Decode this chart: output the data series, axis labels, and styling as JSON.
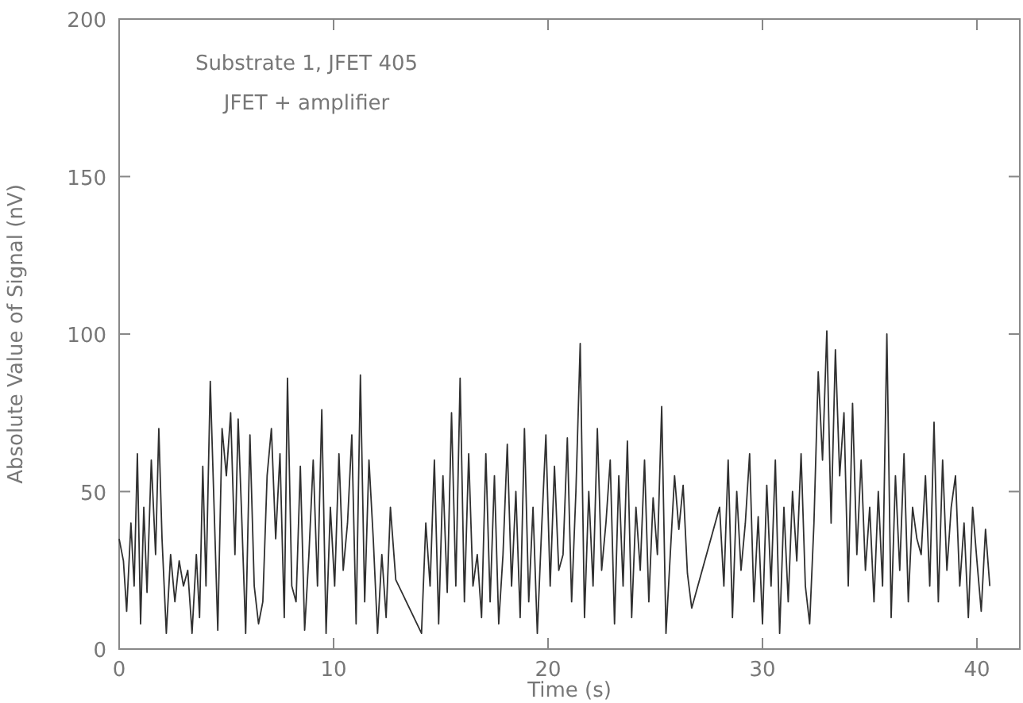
{
  "chart_data": {
    "type": "line",
    "xlabel": "Time (s)",
    "ylabel": "Absolute Value of Signal (nV)",
    "annotations": [
      "Substrate 1, JFET 405",
      "JFET + amplifier"
    ],
    "xlim": [
      0,
      42
    ],
    "xticks": [
      0,
      10,
      20,
      30,
      40
    ],
    "ylim": [
      0,
      200
    ],
    "yticks": [
      0,
      50,
      100,
      150,
      200
    ],
    "grid": false,
    "marker": "none",
    "line_style": "solid",
    "series": [
      {
        "color": "#303030",
        "x": [
          0,
          0.2,
          0.35,
          0.55,
          0.7,
          0.85,
          1.0,
          1.15,
          1.3,
          1.5,
          1.7,
          1.85,
          2.0,
          2.2,
          2.4,
          2.6,
          2.8,
          3.0,
          3.2,
          3.4,
          3.6,
          3.75,
          3.9,
          4.05,
          4.25,
          4.45,
          4.6,
          4.8,
          5.0,
          5.2,
          5.4,
          5.55,
          5.7,
          5.9,
          6.1,
          6.3,
          6.5,
          6.7,
          6.9,
          7.1,
          7.3,
          7.5,
          7.7,
          7.85,
          8.05,
          8.25,
          8.45,
          8.65,
          8.85,
          9.05,
          9.25,
          9.45,
          9.65,
          9.85,
          10.05,
          10.25,
          10.45,
          10.65,
          10.85,
          11.05,
          11.25,
          11.45,
          11.65,
          11.85,
          12.05,
          12.25,
          12.45,
          12.65,
          12.9,
          14.1,
          14.3,
          14.5,
          14.7,
          14.9,
          15.1,
          15.3,
          15.5,
          15.7,
          15.9,
          16.1,
          16.3,
          16.5,
          16.7,
          16.9,
          17.1,
          17.3,
          17.5,
          17.7,
          17.9,
          18.1,
          18.3,
          18.5,
          18.7,
          18.9,
          19.1,
          19.3,
          19.5,
          19.7,
          19.9,
          20.1,
          20.3,
          20.5,
          20.7,
          20.9,
          21.1,
          21.3,
          21.5,
          21.7,
          21.9,
          22.1,
          22.3,
          22.5,
          22.7,
          22.9,
          23.1,
          23.3,
          23.5,
          23.7,
          23.9,
          24.1,
          24.3,
          24.5,
          24.7,
          24.9,
          25.1,
          25.3,
          25.5,
          25.7,
          25.9,
          26.1,
          26.3,
          26.5,
          26.7,
          28.0,
          28.2,
          28.4,
          28.6,
          28.8,
          29.0,
          29.2,
          29.4,
          29.6,
          29.8,
          30.0,
          30.2,
          30.4,
          30.6,
          30.8,
          31.0,
          31.2,
          31.4,
          31.6,
          31.8,
          32.0,
          32.2,
          32.4,
          32.6,
          32.8,
          33.0,
          33.2,
          33.4,
          33.6,
          33.8,
          34.0,
          34.2,
          34.4,
          34.6,
          34.8,
          35.0,
          35.2,
          35.4,
          35.6,
          35.8,
          36.0,
          36.2,
          36.4,
          36.6,
          36.8,
          37.0,
          37.2,
          37.4,
          37.6,
          37.8,
          38.0,
          38.2,
          38.4,
          38.6,
          38.8,
          39.0,
          39.2,
          39.4,
          39.6,
          39.8,
          40.0,
          40.2,
          40.4,
          40.6
        ],
        "values": [
          35,
          28,
          12,
          40,
          20,
          62,
          8,
          45,
          18,
          60,
          30,
          70,
          35,
          5,
          30,
          15,
          28,
          20,
          25,
          5,
          30,
          10,
          58,
          20,
          85,
          40,
          6,
          70,
          55,
          75,
          30,
          73,
          45,
          5,
          68,
          20,
          8,
          15,
          55,
          70,
          35,
          62,
          10,
          86,
          20,
          15,
          58,
          6,
          30,
          60,
          20,
          76,
          5,
          45,
          20,
          62,
          25,
          40,
          68,
          8,
          87,
          15,
          60,
          35,
          5,
          30,
          10,
          45,
          22,
          5,
          40,
          20,
          60,
          8,
          55,
          18,
          75,
          20,
          86,
          15,
          62,
          20,
          30,
          10,
          62,
          15,
          55,
          8,
          30,
          65,
          20,
          50,
          10,
          70,
          15,
          45,
          5,
          38,
          68,
          20,
          58,
          25,
          30,
          67,
          15,
          50,
          97,
          10,
          50,
          20,
          70,
          25,
          40,
          60,
          8,
          55,
          20,
          66,
          10,
          45,
          25,
          60,
          15,
          48,
          30,
          77,
          5,
          30,
          55,
          38,
          52,
          24,
          13,
          45,
          20,
          60,
          10,
          50,
          25,
          40,
          62,
          15,
          42,
          8,
          52,
          20,
          60,
          5,
          45,
          15,
          50,
          28,
          62,
          20,
          8,
          40,
          88,
          60,
          101,
          40,
          95,
          55,
          75,
          20,
          78,
          30,
          60,
          25,
          45,
          15,
          50,
          20,
          100,
          10,
          55,
          25,
          62,
          15,
          45,
          35,
          30,
          55,
          20,
          72,
          15,
          60,
          25,
          45,
          55,
          20,
          40,
          10,
          45,
          28,
          12,
          38,
          20
        ]
      }
    ]
  }
}
